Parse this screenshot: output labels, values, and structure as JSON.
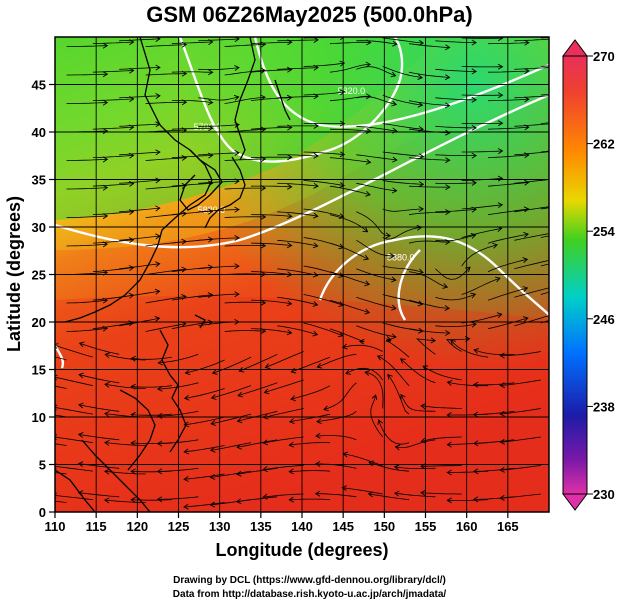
{
  "title": "GSM 06Z26May2025 (500.0hPa)",
  "xaxis": {
    "label": "Longitude (degrees)",
    "ticks": [
      "110",
      "115",
      "120",
      "125",
      "130",
      "135",
      "140",
      "145",
      "150",
      "155",
      "160",
      "165"
    ]
  },
  "yaxis": {
    "label": "Latitude (degrees)",
    "ticks": [
      "0",
      "5",
      "10",
      "15",
      "20",
      "25",
      "30",
      "35",
      "40",
      "45"
    ]
  },
  "colorbar": {
    "ticks": [
      "270",
      "262",
      "254",
      "246",
      "238",
      "230"
    ],
    "colors": [
      "#e8305a",
      "#ff7f00",
      "#ffd700",
      "#35c827",
      "#00c8d0",
      "#0064ff",
      "#1e1ea0",
      "#d22aa0"
    ]
  },
  "contours": [
    {
      "label": "5700.0",
      "lon": 128.5,
      "lat": 40.2
    },
    {
      "label": "5820.0",
      "lon": 146,
      "lat": 44
    },
    {
      "label": "5880.0",
      "lon": 129,
      "lat": 31.5
    },
    {
      "label": "5880.0",
      "lon": 152,
      "lat": 26.5
    }
  ],
  "credit_drawing": "Drawing by DCL (https://www.gfd-dennou.org/library/dcl/)",
  "credit_data": "Data from http://database.rish.kyoto-u.ac.jp/arch/jmadata/"
}
